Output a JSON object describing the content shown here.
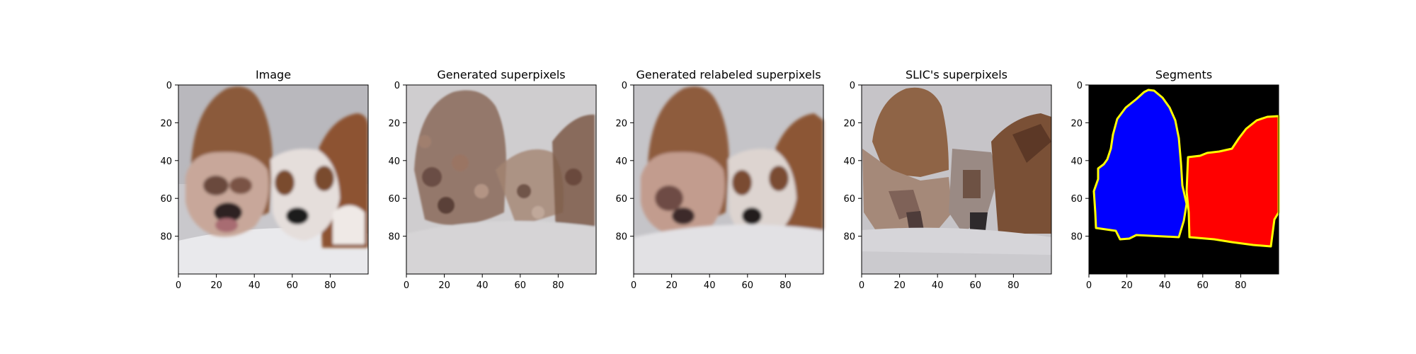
{
  "chart_data": [
    {
      "type": "image",
      "title": "Image",
      "image": "photo of two bulldogs in a white bathtub",
      "xlim": [
        0,
        100
      ],
      "ylim": [
        100,
        0
      ],
      "xticks": [
        0,
        20,
        40,
        60,
        80
      ],
      "yticks": [
        0,
        20,
        40,
        60,
        80
      ]
    },
    {
      "type": "image",
      "title": "Generated superpixels",
      "image": "noisy superpixel rendering with bath outline",
      "xlim": [
        0,
        100
      ],
      "ylim": [
        100,
        0
      ],
      "xticks": [
        0,
        20,
        40,
        60,
        80
      ],
      "yticks": [
        0,
        20,
        40,
        60,
        80
      ]
    },
    {
      "type": "image",
      "title": "Generated relabeled superpixels",
      "image": "smoothed superpixel rendering of two dogs",
      "xlim": [
        0,
        100
      ],
      "ylim": [
        100,
        0
      ],
      "xticks": [
        0,
        20,
        40,
        60,
        80
      ],
      "yticks": [
        0,
        20,
        40,
        60,
        80
      ]
    },
    {
      "type": "image",
      "title": "SLIC's superpixels",
      "image": "SLIC superpixel mean colours of two dogs",
      "xlim": [
        0,
        100
      ],
      "ylim": [
        100,
        0
      ],
      "xticks": [
        0,
        20,
        40,
        60,
        80
      ],
      "yticks": [
        0,
        20,
        40,
        60,
        80
      ]
    },
    {
      "type": "image",
      "title": "Segments",
      "image": "segmentation mask, blue and red regions with yellow boundaries on black",
      "xlim": [
        0,
        100
      ],
      "ylim": [
        100,
        0
      ],
      "xticks": [
        0,
        20,
        40,
        60,
        80
      ],
      "yticks": [
        0,
        20,
        40,
        60,
        80
      ],
      "segment_colors": {
        "background": "#000000",
        "segment_1": "#0000ff",
        "segment_2": "#ff0000",
        "boundary": "#ffff00"
      }
    }
  ]
}
